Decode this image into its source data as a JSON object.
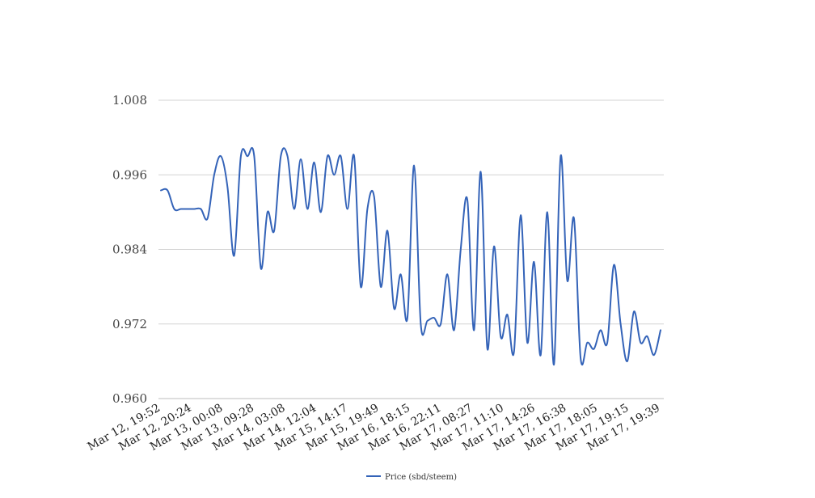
{
  "chart_data": {
    "type": "line",
    "title": "",
    "xlabel": "",
    "ylabel": "",
    "ylim": [
      0.96,
      1.008
    ],
    "y_ticks": [
      0.96,
      0.972,
      0.984,
      0.996,
      1.008
    ],
    "y_tick_labels": [
      "0.960",
      "0.972",
      "0.984",
      "0.996",
      "1.008"
    ],
    "x_tick_labels": [
      "Mar 12, 19:52",
      "Mar 12, 20:24",
      "Mar 13, 00:08",
      "Mar 13, 09:28",
      "Mar 14, 03:08",
      "Mar 14, 12:04",
      "Mar 15, 14:17",
      "Mar 15, 19:49",
      "Mar 16, 18:15",
      "Mar 16, 22:11",
      "Mar 17, 08:27",
      "Mar 17, 11:10",
      "Mar 17, 14:26",
      "Mar 17, 16:38",
      "Mar 17, 18:05",
      "Mar 17, 19:15",
      "Mar 17, 19:39"
    ],
    "grid": true,
    "legend_position": "bottom",
    "series": [
      {
        "name": "Price (sbd/steem)",
        "color": "#3463b8",
        "values": [
          0.9935,
          0.9935,
          0.9905,
          0.9905,
          0.9905,
          0.9905,
          0.9905,
          0.989,
          0.996,
          0.999,
          0.994,
          0.983,
          0.999,
          0.999,
          0.999,
          0.981,
          0.99,
          0.987,
          0.999,
          0.999,
          0.9905,
          0.9985,
          0.9905,
          0.998,
          0.99,
          0.999,
          0.996,
          0.999,
          0.9905,
          0.999,
          0.978,
          0.9905,
          0.9925,
          0.978,
          0.987,
          0.9745,
          0.98,
          0.973,
          0.9975,
          0.972,
          0.9725,
          0.973,
          0.972,
          0.98,
          0.971,
          0.984,
          0.992,
          0.971,
          0.9965,
          0.968,
          0.9845,
          0.97,
          0.9735,
          0.9675,
          0.9895,
          0.969,
          0.982,
          0.967,
          0.99,
          0.9655,
          0.999,
          0.979,
          0.989,
          0.9665,
          0.969,
          0.968,
          0.971,
          0.969,
          0.9815,
          0.972,
          0.966,
          0.974,
          0.969,
          0.97,
          0.967,
          0.971
        ]
      }
    ]
  }
}
